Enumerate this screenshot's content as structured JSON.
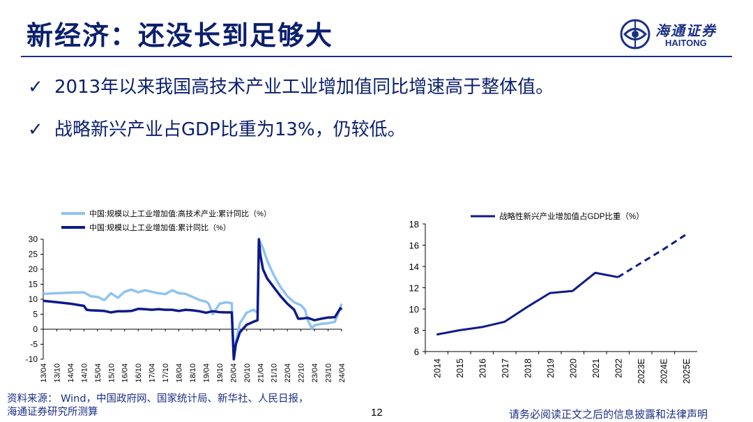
{
  "header": {
    "title": "新经济：还没长到足够大",
    "logo_cn": "海通证券",
    "logo_en": "HAITONG"
  },
  "colors": {
    "navy": "#1a2f86",
    "light_blue": "#8fc3f0",
    "dark_blue": "#0d1a8a"
  },
  "bullets": [
    {
      "check": "✓",
      "text": "2013年以来我国高技术产业工业增加值同比增速高于整体值。"
    },
    {
      "check": "✓",
      "text": "战略新兴产业占GDP比重为13%，仍较低。"
    }
  ],
  "footer": {
    "source_line1": "资料来源： Wind，中国政府网、国家统计局、新华社、人民日报，",
    "source_line2": "海通证券研究所测算",
    "page": "12",
    "disclaimer": "请务必阅读正文之后的信息披露和法律声明"
  },
  "chart_data": [
    {
      "type": "line",
      "legend_placement": "top",
      "ylim": [
        -10,
        30
      ],
      "yticks": [
        30,
        25,
        20,
        15,
        10,
        5,
        0,
        -5,
        -10
      ],
      "x_tick_labels": [
        "13/04",
        "13/10",
        "14/04",
        "14/10",
        "15/04",
        "15/10",
        "16/04",
        "16/10",
        "17/04",
        "17/10",
        "18/04",
        "18/10",
        "19/04",
        "19/10",
        "20/04",
        "20/10",
        "21/04",
        "21/10",
        "22/04",
        "22/10",
        "23/04",
        "23/10",
        "24/04"
      ],
      "series": [
        {
          "name": "中国:规模以上工业增加值:高技术产业:累计同比（%）",
          "color": "#8fc3f0",
          "x": [
            0,
            1,
            2,
            3,
            3.5,
            4,
            4.5,
            5,
            5.5,
            6,
            6.5,
            7,
            7.5,
            8,
            8.5,
            9,
            9.5,
            10,
            10.5,
            11,
            11.5,
            12,
            12.2,
            12.5,
            13,
            13.5,
            13.9,
            14.05,
            14.2,
            14.5,
            15,
            15.5,
            15.8,
            15.9,
            16,
            16.2,
            16.5,
            17,
            17.5,
            18,
            18.5,
            19,
            19.3,
            19.5,
            19.8,
            20,
            20.5,
            21,
            21.5,
            21.9,
            22
          ],
          "y": [
            11.8,
            12,
            12.2,
            12.3,
            11,
            10.8,
            9.7,
            12,
            10.5,
            12.5,
            13.2,
            12.3,
            13,
            12.5,
            12,
            11.7,
            13,
            12,
            11.8,
            10.8,
            9.8,
            9.2,
            8.5,
            5,
            8.5,
            9,
            8.7,
            -10,
            -4,
            2,
            5.5,
            6.5,
            5.5,
            30,
            29,
            27,
            23,
            18,
            14,
            11,
            9,
            8,
            6.5,
            3,
            0.3,
            1.3,
            1.8,
            2,
            2.5,
            7,
            8.5
          ]
        },
        {
          "name": "中国:规模以上工业增加值:累计同比（%）",
          "color": "#0d1a8a",
          "x": [
            0,
            1,
            2,
            3,
            3.2,
            3.5,
            4,
            4.5,
            5,
            5.5,
            6,
            6.5,
            7,
            7.5,
            8,
            8.5,
            9,
            9.5,
            10,
            10.5,
            11,
            11.5,
            12,
            12.5,
            13,
            13.5,
            13.9,
            14.05,
            14.2,
            14.5,
            15,
            15.5,
            15.8,
            15.9,
            16,
            16.2,
            16.5,
            17,
            17.5,
            18,
            18.5,
            18.8,
            19,
            19.5,
            20,
            20.5,
            21,
            21.5,
            21.9,
            22
          ],
          "y": [
            9.5,
            9,
            8.5,
            7.8,
            6.5,
            6.3,
            6.2,
            6.1,
            5.6,
            6,
            6,
            6.1,
            6.8,
            6.7,
            6.5,
            6.7,
            6.5,
            6.5,
            6.1,
            6.5,
            6.3,
            6,
            5.5,
            6,
            5.7,
            5.6,
            5.6,
            -10,
            -5,
            -1,
            1.5,
            2.5,
            3,
            30,
            25,
            20,
            17,
            14,
            11,
            8.5,
            6.5,
            3.5,
            3.5,
            3.8,
            3,
            3.5,
            3.9,
            4,
            7,
            6.5
          ]
        }
      ]
    },
    {
      "type": "line",
      "legend_placement": "top",
      "ylim": [
        6,
        18
      ],
      "yticks": [
        18,
        16,
        14,
        12,
        10,
        8,
        6
      ],
      "categories": [
        "2014",
        "2015",
        "2016",
        "2017",
        "2018",
        "2019",
        "2020",
        "2021",
        "2022",
        "2023E",
        "2024E",
        "2025E"
      ],
      "series": [
        {
          "name": "战略性新兴产业增加值占GDP比重（%）",
          "color": "#0d1a8a",
          "actual_through": "2022",
          "values": [
            7.6,
            8.0,
            8.3,
            8.8,
            10.2,
            11.5,
            11.7,
            13.4,
            13.0,
            14.3,
            15.6,
            17.0
          ]
        }
      ]
    }
  ]
}
